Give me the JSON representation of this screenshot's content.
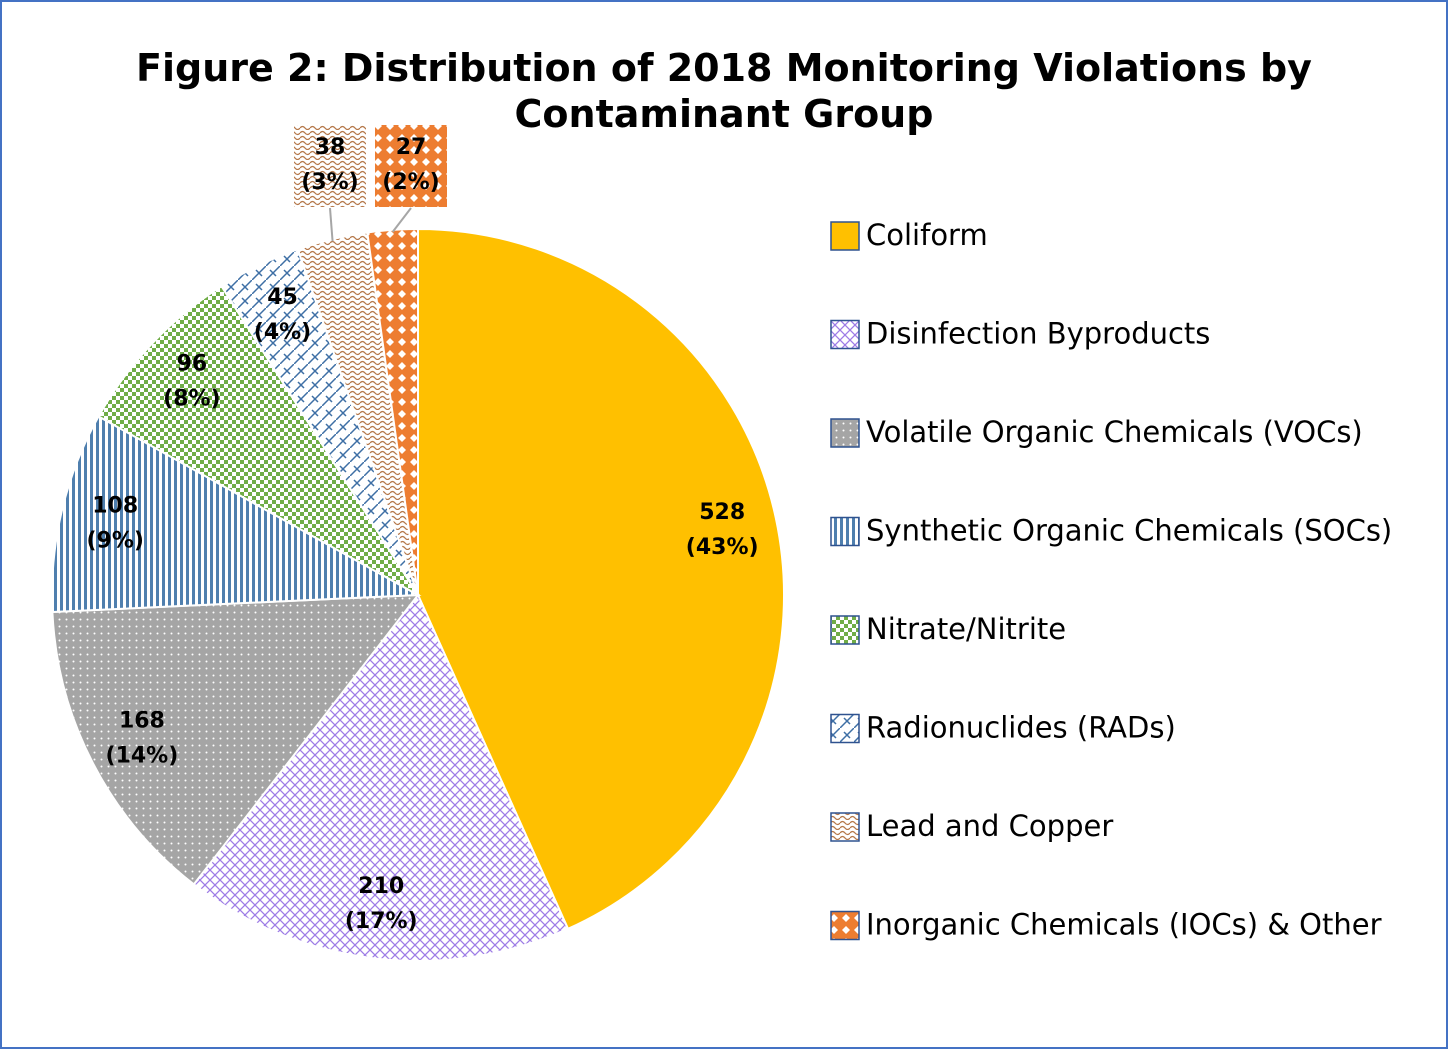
{
  "chart_data": {
    "type": "pie",
    "title": "Figure 2: Distribution of 2018 Monitoring Violations by\nContaminant Group",
    "categories": [
      "Coliform",
      "Disinfection Byproducts",
      "Volatile Organic Chemicals (VOCs)",
      "Synthetic Organic Chemicals (SOCs)",
      "Nitrate/Nitrite",
      "Radionuclides (RADs)",
      "Lead and Copper",
      "Inorganic Chemicals (IOCs) & Other"
    ],
    "values": [
      528,
      210,
      168,
      108,
      96,
      45,
      38,
      27
    ],
    "value_labels": [
      "528\n(43%)",
      "210\n(17%)",
      "168\n(14%)",
      "108\n(9%)",
      "96\n(8%)",
      "45\n(4%)",
      "38\n(3%)",
      "27\n(2%)"
    ],
    "colors": [
      "#ffc000",
      "#9e7ce6",
      "#a5a5a5",
      "#4f7fae",
      "#70ad47",
      "#3e6fa5",
      "#b5784a",
      "#ed7d31"
    ],
    "legend": "right"
  }
}
